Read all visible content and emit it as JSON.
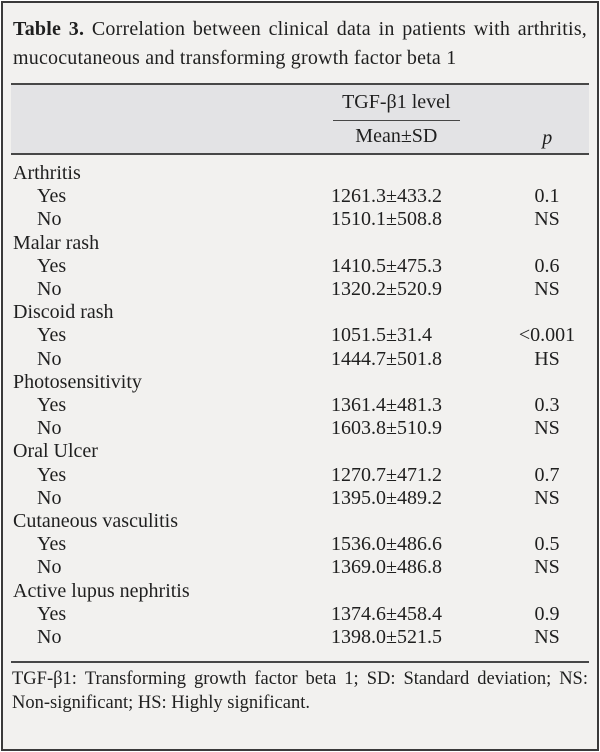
{
  "figure": {
    "title_bold": "Table 3.",
    "title_rest": " Correlation between clinical data in patients with arthritis, mucocutaneous and transforming growth factor beta 1"
  },
  "header": {
    "tgf_group_label": "TGF-β1 level",
    "mean_sd_label": "Mean±SD",
    "p_label": "p"
  },
  "labels": {
    "yes": "Yes",
    "no": "No"
  },
  "rows": [
    {
      "category": "Arthritis",
      "yes": {
        "mean": "1261.3±433.2",
        "p": "0.1"
      },
      "no": {
        "mean": "1510.1±508.8",
        "p": "NS"
      }
    },
    {
      "category": "Malar rash",
      "yes": {
        "mean": "1410.5±475.3",
        "p": "0.6"
      },
      "no": {
        "mean": "1320.2±520.9",
        "p": "NS"
      }
    },
    {
      "category": "Discoid rash",
      "yes": {
        "mean": "1051.5±31.4",
        "p": "<0.001"
      },
      "no": {
        "mean": "1444.7±501.8",
        "p": "HS"
      }
    },
    {
      "category": "Photosensitivity",
      "yes": {
        "mean": "1361.4±481.3",
        "p": "0.3"
      },
      "no": {
        "mean": "1603.8±510.9",
        "p": "NS"
      }
    },
    {
      "category": "Oral Ulcer",
      "yes": {
        "mean": "1270.7±471.2",
        "p": "0.7"
      },
      "no": {
        "mean": "1395.0±489.2",
        "p": "NS"
      }
    },
    {
      "category": "Cutaneous vasculitis",
      "yes": {
        "mean": "1536.0±486.6",
        "p": "0.5"
      },
      "no": {
        "mean": "1369.0±486.8",
        "p": "NS"
      }
    },
    {
      "category": "Active lupus nephritis",
      "yes": {
        "mean": "1374.6±458.4",
        "p": "0.9"
      },
      "no": {
        "mean": "1398.0±521.5",
        "p": "NS"
      }
    }
  ],
  "footnote": "TGF-β1: Transforming growth factor beta 1; SD: Standard deviation; NS: Non-significant; HS: Highly significant.",
  "colors": {
    "background": "#f2f1ef",
    "header_band": "#e3e3e5",
    "text": "#1f1f1f",
    "rule": "#474747"
  }
}
